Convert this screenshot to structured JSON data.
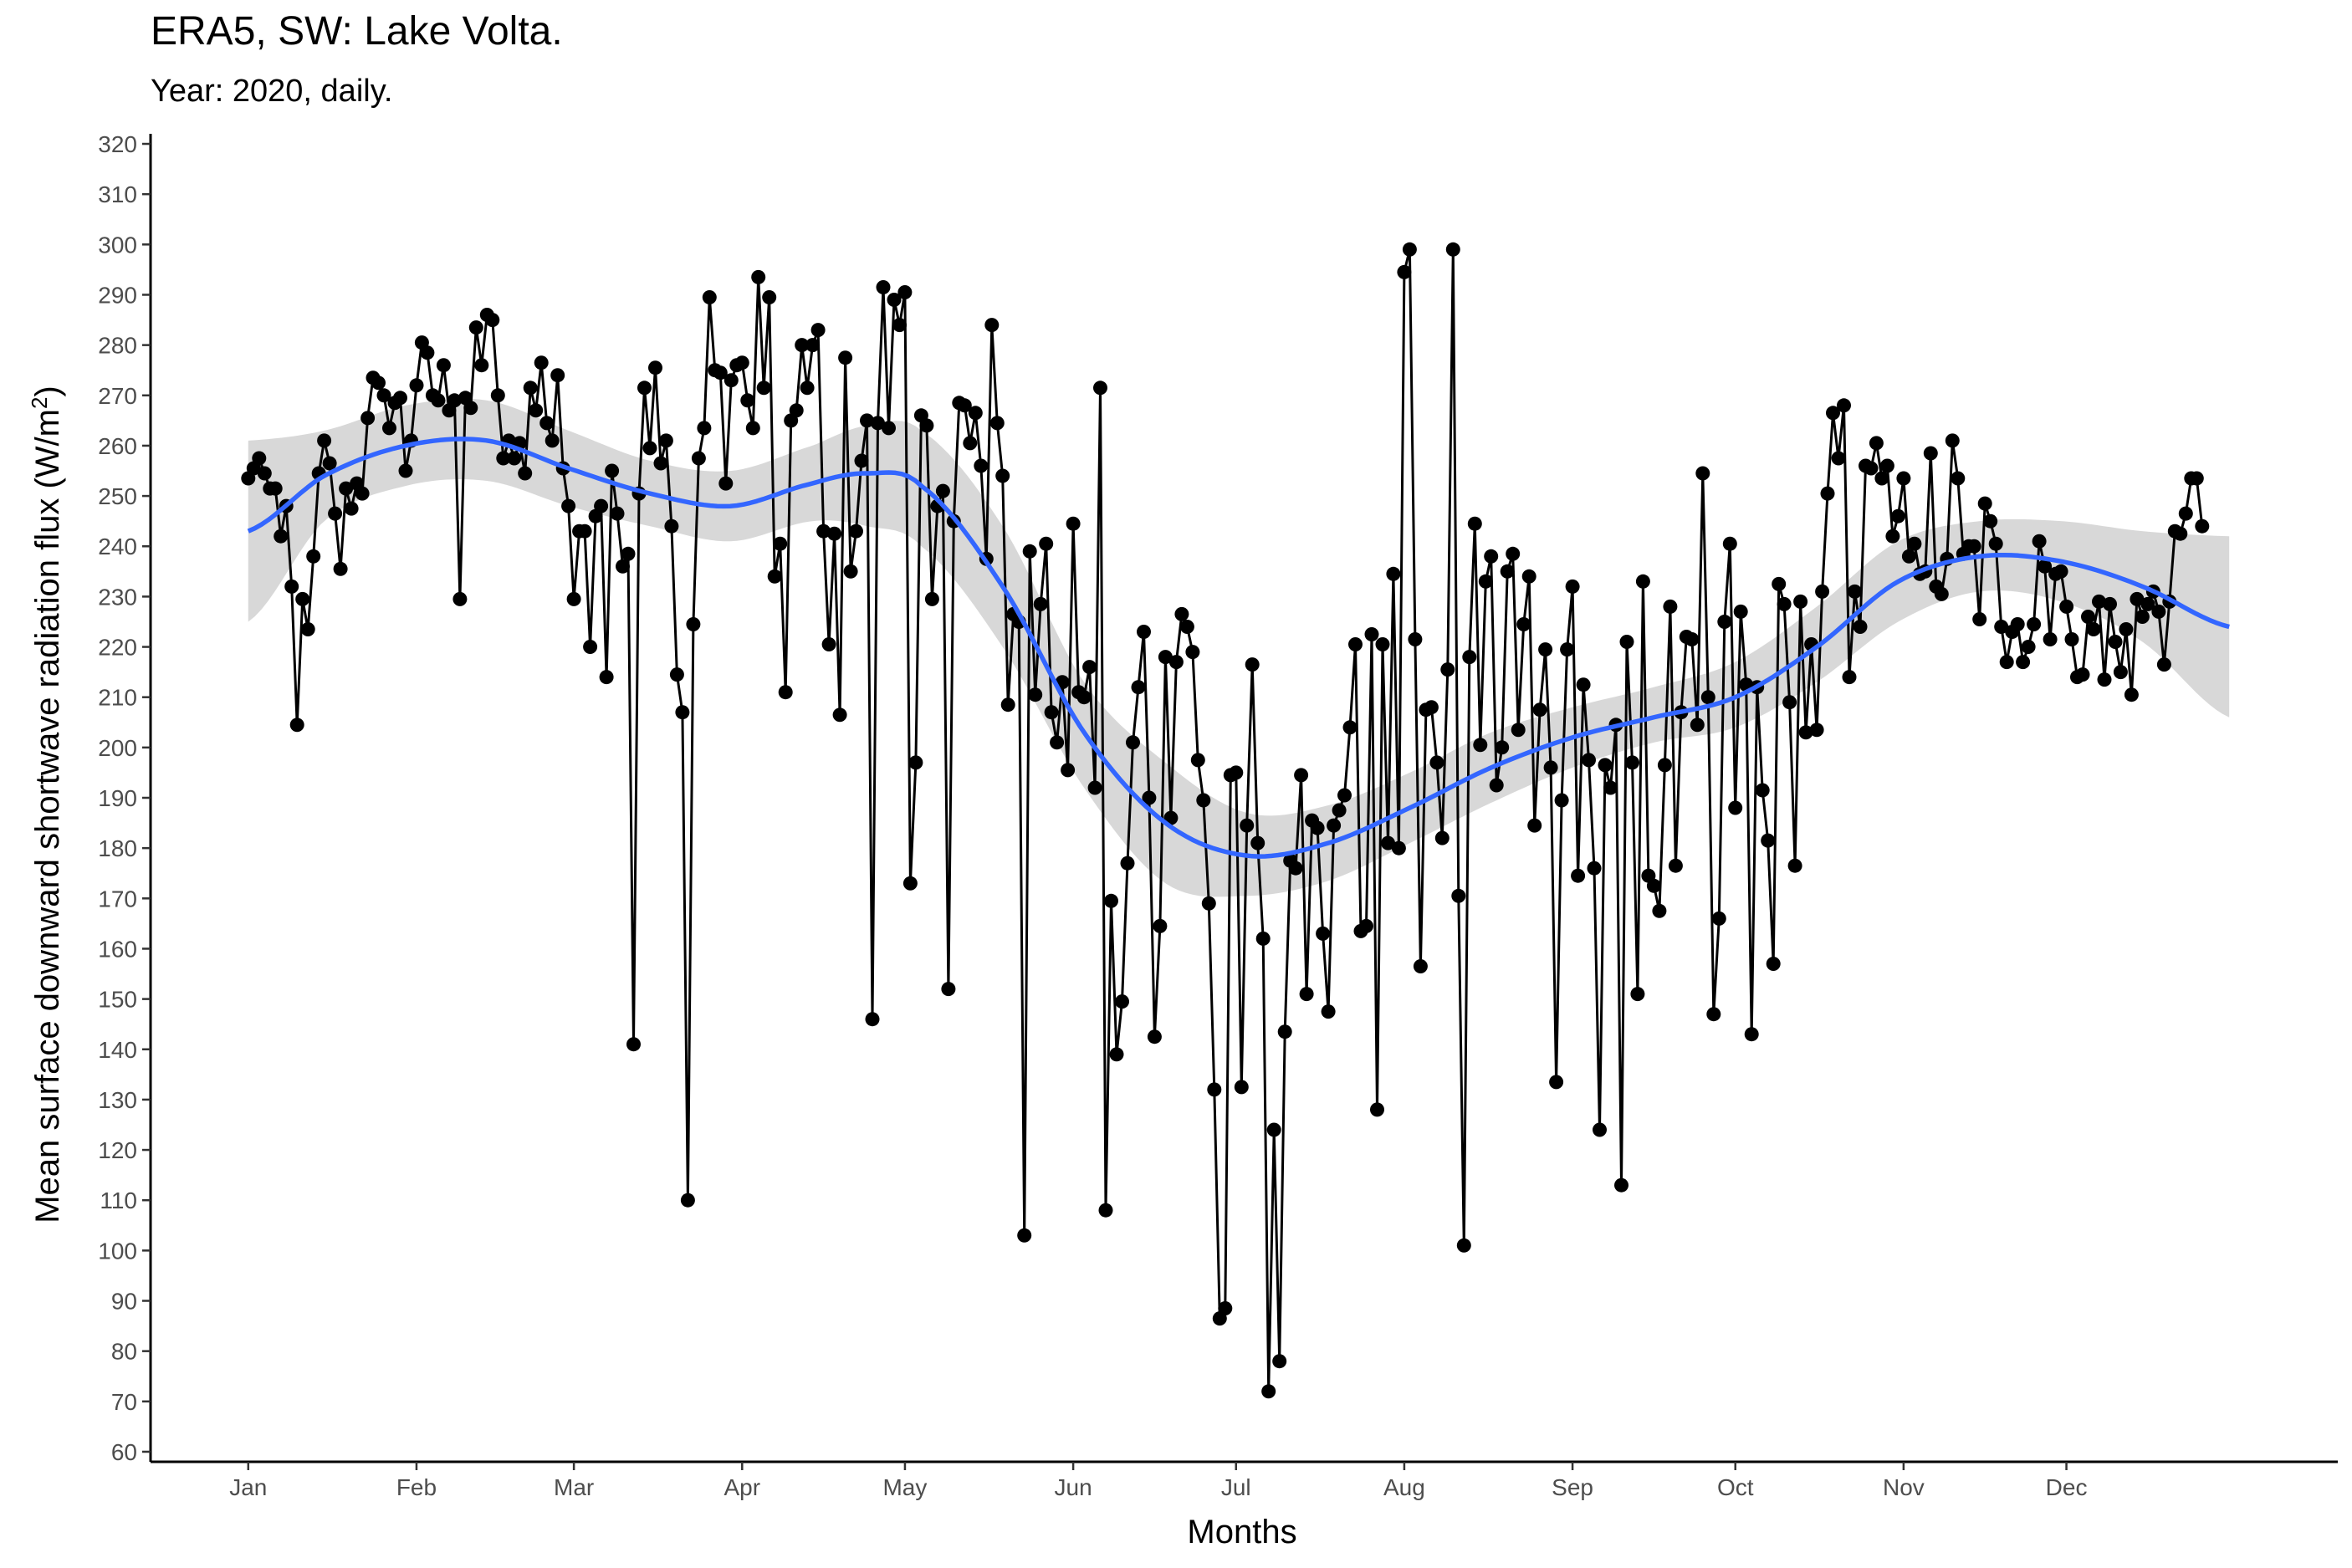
{
  "chart_data": {
    "type": "line",
    "title": "ERA5, SW: Lake Volta.",
    "subtitle": "Year: 2020, daily.",
    "xlabel": "Months",
    "ylabel_main": "Mean surface downward shortwave radiation flux (W/m",
    "ylabel_sup": "2",
    "ylabel_end": ")",
    "x_ticks": [
      "Jan",
      "Feb",
      "Mar",
      "Apr",
      "May",
      "Jun",
      "Jul",
      "Aug",
      "Sep",
      "Oct",
      "Nov",
      "Dec"
    ],
    "x_tick_days": [
      1,
      32,
      61,
      92,
      122,
      153,
      183,
      214,
      245,
      275,
      306,
      336
    ],
    "x_range": [
      -17,
      386
    ],
    "y_ticks": [
      60,
      70,
      80,
      90,
      100,
      110,
      120,
      130,
      140,
      150,
      160,
      170,
      180,
      190,
      200,
      210,
      220,
      230,
      240,
      250,
      260,
      270,
      280,
      290,
      300,
      310,
      320
    ],
    "ylim": [
      58,
      322
    ],
    "grid": false,
    "colors": {
      "points": "#000000",
      "line": "#000000",
      "smooth": "#3366ff",
      "band": "#bebebe"
    },
    "daily_values": [
      253.5,
      255.5,
      257.5,
      254.5,
      251.5,
      251.5,
      242,
      248,
      232,
      204.5,
      229.5,
      223.5,
      238,
      254.5,
      261,
      256.5,
      246.5,
      235.5,
      251.5,
      247.5,
      252.5,
      250.5,
      265.5,
      273.5,
      272.5,
      270,
      263.5,
      268.5,
      269.5,
      255,
      261,
      272,
      280.5,
      278.5,
      270,
      269,
      276,
      267,
      269,
      229.5,
      269.5,
      267.5,
      283.5,
      276,
      286,
      285,
      270,
      257.5,
      261,
      257.5,
      260.5,
      254.5,
      271.5,
      267,
      276.5,
      264.5,
      261,
      274,
      255.5,
      248,
      229.5,
      243,
      243,
      220,
      246,
      248,
      214,
      255,
      246.5,
      236,
      238.5,
      141,
      250.5,
      271.5,
      259.5,
      275.5,
      256.5,
      261,
      244,
      214.5,
      207,
      110,
      224.5,
      257.5,
      263.5,
      289.5,
      275,
      274.5,
      252.5,
      273,
      276,
      276.5,
      269,
      263.5,
      293.5,
      271.5,
      289.5,
      234,
      240.5,
      211,
      265,
      267,
      280,
      271.5,
      280,
      283,
      243,
      220.5,
      242.5,
      206.5,
      277.5,
      235,
      243,
      257,
      265,
      146,
      264.5,
      291.5,
      263.5,
      289,
      284,
      290.5,
      173,
      197,
      266,
      264,
      229.5,
      248,
      251,
      152,
      245,
      268.5,
      268,
      260.5,
      266.5,
      256,
      237.5,
      284,
      264.5,
      254,
      208.5,
      226.5,
      225,
      103,
      239,
      210.5,
      228.5,
      240.5,
      207,
      201,
      213,
      195.5,
      244.5,
      211,
      210,
      216,
      192,
      271.5,
      108,
      169.5,
      139,
      149.5,
      177,
      201,
      212,
      223,
      190,
      142.5,
      164.5,
      218,
      186,
      217,
      226.5,
      224,
      219,
      197.5,
      189.5,
      169,
      132,
      86.5,
      88.5,
      194.5,
      195,
      132.5,
      184.5,
      216.5,
      181,
      162,
      72,
      124,
      78,
      143.5,
      177.5,
      176,
      194.5,
      151,
      185.5,
      184,
      163,
      147.5,
      184.5,
      187.5,
      190.5,
      204,
      220.5,
      163.5,
      164.5,
      222.5,
      128,
      220.5,
      181,
      234.5,
      180,
      294.5,
      299,
      221.5,
      156.5,
      207.5,
      208,
      197,
      182,
      215.5,
      299,
      170.5,
      101,
      218,
      244.5,
      200.5,
      233,
      238,
      192.5,
      200,
      235,
      238.5,
      203.5,
      224.5,
      234,
      184.5,
      207.5,
      219.5,
      196,
      133.5,
      189.5,
      219.5,
      232,
      174.5,
      212.5,
      197.5,
      176,
      124,
      196.5,
      192,
      204.5,
      113,
      221,
      197,
      151,
      233,
      174.5,
      172.5,
      167.5,
      196.5,
      228,
      176.5,
      207,
      222,
      221.5,
      204.5,
      254.5,
      210,
      147,
      166,
      225,
      240.5,
      188,
      227,
      212.5,
      143,
      212,
      191.5,
      181.5,
      157,
      232.5,
      228.5,
      209,
      176.5,
      229,
      203,
      220.5,
      203.5,
      231,
      250.5,
      266.5,
      257.5,
      268,
      214,
      231,
      224,
      256,
      255.5,
      260.5,
      253.5,
      256,
      242,
      246,
      253.5,
      238,
      240.5,
      234.5,
      235,
      258.5,
      232,
      230.5,
      237.5,
      261,
      253.5,
      238.5,
      240,
      240,
      225.5,
      248.5,
      245,
      240.5,
      224,
      217,
      223,
      224.5,
      217,
      220,
      224.5,
      241,
      236,
      221.5,
      234.5,
      235,
      228,
      221.5,
      214,
      214.5,
      226,
      223.5,
      229,
      213.5,
      228.5,
      221,
      215,
      223.5,
      210.5,
      229.5,
      226,
      228.5,
      231,
      227,
      216.5,
      229,
      243,
      242.5,
      246.5,
      253.5,
      253.5,
      244
    ],
    "smooth_knots": {
      "day": [
        1,
        15,
        30,
        45,
        60,
        75,
        90,
        105,
        115,
        125,
        140,
        155,
        170,
        185,
        200,
        215,
        230,
        245,
        260,
        275,
        290,
        305,
        320,
        335,
        350,
        366
      ],
      "mean": [
        243,
        254,
        260,
        261,
        255.5,
        250.5,
        248,
        252.5,
        254.5,
        252,
        232,
        203,
        185,
        178.5,
        181,
        188,
        196,
        202,
        206,
        210,
        220,
        233,
        238,
        237,
        232,
        224
      ],
      "lower": [
        225,
        245,
        252,
        253,
        248,
        244,
        241,
        245,
        244,
        240,
        220,
        192,
        173,
        170.5,
        173.5,
        181,
        189,
        196,
        201,
        204,
        213,
        225,
        231,
        229,
        221,
        206
      ],
      "upper": [
        261,
        263,
        268,
        269,
        263,
        257,
        255,
        260,
        264,
        263,
        244,
        213,
        197,
        187,
        188.5,
        195,
        203,
        208,
        212,
        217,
        228,
        241,
        245,
        245,
        243,
        242
      ]
    }
  }
}
